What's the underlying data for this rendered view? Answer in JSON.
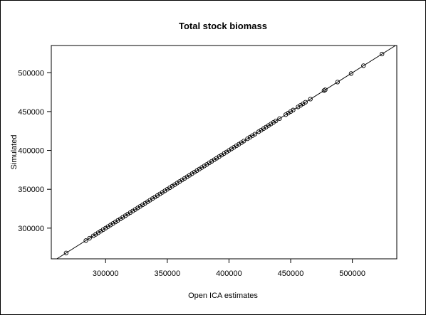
{
  "chart_data": {
    "type": "scatter",
    "title": "Total stock biomass",
    "xlabel": "Open ICA estimates",
    "ylabel": "Simulated",
    "xlim": [
      256000,
      536000
    ],
    "ylim": [
      260500,
      535000
    ],
    "x_ticks": [
      300000,
      350000,
      400000,
      450000,
      500000
    ],
    "y_ticks": [
      300000,
      350000,
      400000,
      450000,
      500000
    ],
    "x_tick_labels": [
      "300000",
      "350000",
      "400000",
      "450000",
      "500000"
    ],
    "y_tick_labels": [
      "300000",
      "350000",
      "400000",
      "450000",
      "500000"
    ],
    "reference_line": {
      "intercept": 0,
      "slope": 1
    },
    "grid": false,
    "legend": "none",
    "marker": "open-circle",
    "color": "#000000",
    "points": [
      {
        "x": 268000,
        "y": 268000
      },
      {
        "x": 284000,
        "y": 284000
      },
      {
        "x": 287000,
        "y": 287000
      },
      {
        "x": 290000,
        "y": 290000
      },
      {
        "x": 292000,
        "y": 292000
      },
      {
        "x": 294000,
        "y": 294000
      },
      {
        "x": 296000,
        "y": 296000
      },
      {
        "x": 298000,
        "y": 298000
      },
      {
        "x": 300000,
        "y": 300000
      },
      {
        "x": 302000,
        "y": 302000
      },
      {
        "x": 304000,
        "y": 304000
      },
      {
        "x": 306000,
        "y": 306000
      },
      {
        "x": 308000,
        "y": 308000
      },
      {
        "x": 310000,
        "y": 310000
      },
      {
        "x": 312000,
        "y": 312000
      },
      {
        "x": 314000,
        "y": 314000
      },
      {
        "x": 316000,
        "y": 316000
      },
      {
        "x": 318000,
        "y": 318000
      },
      {
        "x": 320000,
        "y": 320000
      },
      {
        "x": 322000,
        "y": 322000
      },
      {
        "x": 324000,
        "y": 324000
      },
      {
        "x": 326000,
        "y": 326000
      },
      {
        "x": 328000,
        "y": 328000
      },
      {
        "x": 330000,
        "y": 330000
      },
      {
        "x": 332000,
        "y": 332000
      },
      {
        "x": 334000,
        "y": 334000
      },
      {
        "x": 336000,
        "y": 336000
      },
      {
        "x": 338000,
        "y": 338000
      },
      {
        "x": 340000,
        "y": 340000
      },
      {
        "x": 342000,
        "y": 342000
      },
      {
        "x": 344000,
        "y": 344000
      },
      {
        "x": 346000,
        "y": 346000
      },
      {
        "x": 348000,
        "y": 348000
      },
      {
        "x": 350000,
        "y": 350000
      },
      {
        "x": 352000,
        "y": 352000
      },
      {
        "x": 354000,
        "y": 354000
      },
      {
        "x": 356000,
        "y": 356000
      },
      {
        "x": 358000,
        "y": 358000
      },
      {
        "x": 360000,
        "y": 360000
      },
      {
        "x": 362000,
        "y": 362000
      },
      {
        "x": 364000,
        "y": 364000
      },
      {
        "x": 366000,
        "y": 366000
      },
      {
        "x": 368000,
        "y": 368000
      },
      {
        "x": 370000,
        "y": 370000
      },
      {
        "x": 372000,
        "y": 372000
      },
      {
        "x": 374000,
        "y": 374000
      },
      {
        "x": 376000,
        "y": 376000
      },
      {
        "x": 378000,
        "y": 378000
      },
      {
        "x": 380000,
        "y": 380000
      },
      {
        "x": 382000,
        "y": 382000
      },
      {
        "x": 384000,
        "y": 384000
      },
      {
        "x": 386000,
        "y": 386000
      },
      {
        "x": 388000,
        "y": 388000
      },
      {
        "x": 390000,
        "y": 390000
      },
      {
        "x": 392000,
        "y": 392000
      },
      {
        "x": 394000,
        "y": 394000
      },
      {
        "x": 396000,
        "y": 396000
      },
      {
        "x": 398000,
        "y": 398000
      },
      {
        "x": 400000,
        "y": 400000
      },
      {
        "x": 402000,
        "y": 402000
      },
      {
        "x": 404000,
        "y": 404000
      },
      {
        "x": 406000,
        "y": 406000
      },
      {
        "x": 408000,
        "y": 408000
      },
      {
        "x": 410000,
        "y": 410000
      },
      {
        "x": 412000,
        "y": 412000
      },
      {
        "x": 415000,
        "y": 415000
      },
      {
        "x": 417000,
        "y": 417000
      },
      {
        "x": 419000,
        "y": 419000
      },
      {
        "x": 421000,
        "y": 421000
      },
      {
        "x": 424000,
        "y": 424000
      },
      {
        "x": 426000,
        "y": 426000
      },
      {
        "x": 428000,
        "y": 428000
      },
      {
        "x": 430000,
        "y": 430000
      },
      {
        "x": 432000,
        "y": 432000
      },
      {
        "x": 434000,
        "y": 434000
      },
      {
        "x": 436000,
        "y": 436000
      },
      {
        "x": 438000,
        "y": 438000
      },
      {
        "x": 441000,
        "y": 441000
      },
      {
        "x": 446000,
        "y": 446000
      },
      {
        "x": 448000,
        "y": 448000
      },
      {
        "x": 450000,
        "y": 450000
      },
      {
        "x": 452000,
        "y": 452000
      },
      {
        "x": 456000,
        "y": 456000
      },
      {
        "x": 458000,
        "y": 458000
      },
      {
        "x": 460000,
        "y": 460000
      },
      {
        "x": 462000,
        "y": 462000
      },
      {
        "x": 466000,
        "y": 466000
      },
      {
        "x": 477000,
        "y": 477000
      },
      {
        "x": 478000,
        "y": 478000
      },
      {
        "x": 488000,
        "y": 488000
      },
      {
        "x": 499000,
        "y": 499000
      },
      {
        "x": 509000,
        "y": 509000
      },
      {
        "x": 524000,
        "y": 524000
      }
    ]
  }
}
